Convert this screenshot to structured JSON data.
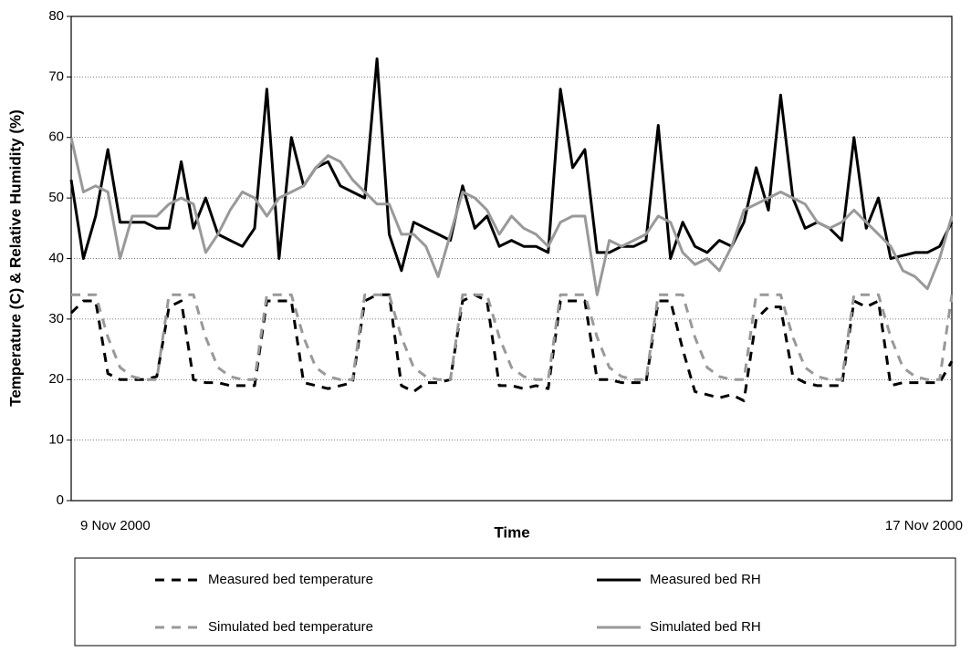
{
  "chart_data": {
    "type": "line",
    "x_label": "Time",
    "y_label": "Temperature (C) & Relative Humidity (%)",
    "categories": [
      "9 Nov 2000",
      null,
      null,
      null,
      null,
      null,
      null,
      null,
      null,
      null,
      null,
      null,
      null,
      null,
      null,
      null,
      null,
      null,
      null,
      null,
      null,
      null,
      null,
      null,
      null,
      null,
      null,
      null,
      null,
      null,
      null,
      null,
      null,
      null,
      null,
      null,
      null,
      null,
      null,
      null,
      null,
      null,
      null,
      null,
      null,
      null,
      null,
      null,
      null,
      null,
      null,
      null,
      null,
      null,
      null,
      null,
      null,
      null,
      null,
      null,
      null,
      null,
      null,
      null,
      null,
      null,
      null,
      null,
      null,
      null,
      null,
      null,
      "17 Nov 2000"
    ],
    "ylim": [
      0,
      80
    ],
    "yticks": [
      0,
      10,
      20,
      30,
      40,
      50,
      60,
      70,
      80
    ],
    "grid": true,
    "legend": "bottom",
    "series": [
      {
        "name": "Measured bed temperature",
        "color": "#000000",
        "dashed": true,
        "values": [
          31,
          33,
          33,
          21,
          20,
          20,
          20,
          20.5,
          32,
          33,
          20,
          19.5,
          19.5,
          19,
          19,
          19,
          33,
          33,
          33,
          19.5,
          19,
          18.5,
          19,
          19.5,
          33,
          34,
          34,
          19,
          18,
          19.5,
          19.5,
          20,
          33,
          34,
          33,
          19,
          19,
          18.5,
          19,
          18.5,
          33,
          33,
          33,
          20,
          20,
          19.5,
          19.5,
          19.5,
          33,
          33,
          25,
          18,
          17.5,
          17,
          17.5,
          16.5,
          30,
          32,
          32,
          20.5,
          19.5,
          19,
          19,
          19,
          33,
          32,
          33,
          19,
          19.5,
          19.5,
          19.5,
          19.5,
          23
        ]
      },
      {
        "name": "Measured bed RH",
        "color": "#000000",
        "dashed": false,
        "values": [
          53,
          40,
          47,
          58,
          46,
          46,
          46,
          45,
          45,
          56,
          45,
          50,
          44,
          43,
          42,
          45,
          68,
          40,
          60,
          52,
          55,
          56,
          52,
          51,
          50,
          73,
          44,
          38,
          46,
          45,
          44,
          43,
          52,
          45,
          47,
          42,
          43,
          42,
          42,
          41,
          68,
          55,
          58,
          41,
          41,
          42,
          42,
          43,
          62,
          40,
          46,
          42,
          41,
          43,
          42,
          46,
          55,
          48,
          67,
          50,
          45,
          46,
          45,
          43,
          60,
          45,
          50,
          40,
          40.5,
          41,
          41,
          42,
          46
        ]
      },
      {
        "name": "Simulated bed temperature",
        "color": "#999999",
        "dashed": true,
        "values": [
          34,
          34,
          34,
          27,
          22,
          20.5,
          20,
          20,
          34,
          34,
          34,
          27,
          22,
          20.5,
          20,
          20,
          34,
          34,
          34,
          27,
          22,
          20.5,
          20,
          20,
          34,
          34,
          34,
          27,
          22,
          20.5,
          20,
          20,
          34,
          34,
          34,
          27,
          22,
          20.5,
          20,
          20,
          34,
          34,
          34,
          27,
          22,
          20.5,
          20,
          20,
          34,
          34,
          34,
          27,
          22,
          20.5,
          20,
          20,
          34,
          34,
          34,
          27,
          22,
          20.5,
          20,
          20,
          34,
          34,
          34,
          27,
          22,
          20.5,
          20,
          20,
          34
        ]
      },
      {
        "name": "Simulated bed RH",
        "color": "#999999",
        "dashed": false,
        "values": [
          60,
          51,
          52,
          51,
          40,
          47,
          47,
          47,
          49,
          50,
          49,
          41,
          44,
          48,
          51,
          50,
          47,
          50,
          51,
          52,
          55,
          57,
          56,
          53,
          51,
          49,
          49,
          44,
          44,
          42,
          37,
          44,
          51,
          50,
          48,
          44,
          47,
          45,
          44,
          42,
          46,
          47,
          47,
          34,
          43,
          42,
          43,
          44,
          47,
          46,
          41,
          39,
          40,
          38,
          42,
          48,
          49,
          50,
          51,
          50,
          49,
          46,
          45,
          46,
          48,
          46,
          44,
          42,
          38,
          37,
          35,
          40,
          47
        ]
      }
    ]
  }
}
